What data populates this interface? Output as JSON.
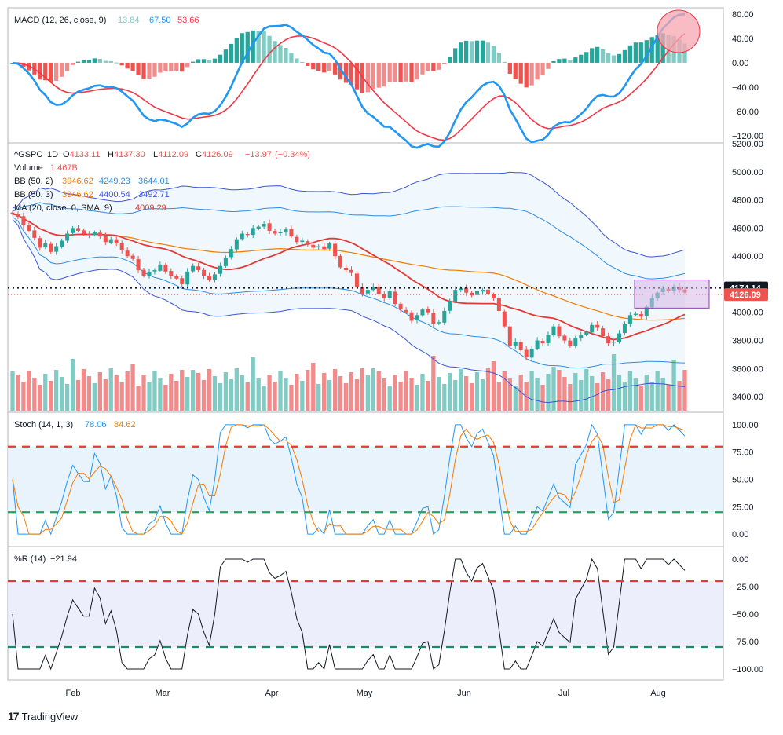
{
  "chart_data": {
    "type": "candlestick",
    "symbol": "^GSPC",
    "interval": "1D",
    "ohlc": {
      "open": "4133.11",
      "high": "4137.30",
      "low": "4112.09",
      "close": "4126.09",
      "change": "−13.97",
      "change_pct": "(−0.34%)"
    },
    "volume": "1.467B",
    "x_ticks": [
      "Feb",
      "Mar",
      "Apr",
      "May",
      "Jun",
      "Jul",
      "Aug"
    ],
    "price_panel": {
      "ylim": [
        3300,
        5200
      ],
      "y_ticks": [
        "5200.00",
        "5000.00",
        "4800.00",
        "4600.00",
        "4400.00",
        "4200.00",
        "4000.00",
        "3800.00",
        "3600.00",
        "3400.00"
      ],
      "closes": [
        4700,
        4680,
        4620,
        4580,
        4530,
        4460,
        4490,
        4430,
        4470,
        4510,
        4560,
        4600,
        4580,
        4560,
        4550,
        4570,
        4540,
        4500,
        4520,
        4490,
        4440,
        4400,
        4380,
        4300,
        4260,
        4290,
        4300,
        4340,
        4290,
        4260,
        4240,
        4200,
        4290,
        4330,
        4300,
        4260,
        4230,
        4270,
        4330,
        4390,
        4450,
        4520,
        4560,
        4550,
        4600,
        4610,
        4630,
        4580,
        4560,
        4570,
        4590,
        4540,
        4500,
        4510,
        4480,
        4460,
        4470,
        4450,
        4490,
        4400,
        4320,
        4300,
        4280,
        4180,
        4130,
        4160,
        4180,
        4130,
        4100,
        4150,
        4060,
        4020,
        4000,
        3940,
        3980,
        4020,
        4000,
        3920,
        3930,
        4010,
        4080,
        4160,
        4170,
        4140,
        4120,
        4150,
        4160,
        4130,
        4100,
        4010,
        3900,
        3760,
        3790,
        3730,
        3680,
        3740,
        3800,
        3780,
        3840,
        3900,
        3830,
        3800,
        3760,
        3820,
        3840,
        3860,
        3910,
        3890,
        3830,
        3780,
        3790,
        3850,
        3920,
        3980,
        3990,
        3970,
        4040,
        4100,
        4140,
        4170,
        4150,
        4180,
        4160,
        4140
      ],
      "last_price": {
        "label": "4126.09",
        "value": 4126.09
      },
      "prior_level": {
        "label": "4174.14",
        "value": 4174.14
      },
      "ma": {
        "label": "MA (20, close, 0, SMA, 9)",
        "value": "4009.29"
      },
      "bb_50_2": {
        "label": "BB (50, 2)",
        "basis": "3946.62",
        "upper": "4249.23",
        "lower": "3644.01"
      },
      "bb_50_3": {
        "label": "BB (50, 3)",
        "basis": "3946.62",
        "upper": "4400.54",
        "lower": "3492.71"
      },
      "volume_label": "Volume"
    },
    "macd_panel": {
      "label": "MACD (12, 26, close, 9)",
      "hist": "13.84",
      "macd": "67.50",
      "signal": "53.66",
      "ylim": [
        -130,
        90
      ],
      "y_ticks": [
        "80.00",
        "40.00",
        "0.00",
        "−40.00",
        "−80.00",
        "−120.00"
      ]
    },
    "stoch_panel": {
      "label": "Stoch (14, 1, 3)",
      "k": "78.06",
      "d": "84.62",
      "ylim": [
        -10,
        110
      ],
      "y_ticks": [
        "100.00",
        "75.00",
        "50.00",
        "25.00",
        "0.00"
      ],
      "upper_band": 80,
      "lower_band": 20
    },
    "wr_panel": {
      "label": "%R (14)",
      "value": "−21.94",
      "ylim": [
        -110,
        10
      ],
      "y_ticks": [
        "0.00",
        "−25.00",
        "−50.00",
        "−75.00",
        "−100.00"
      ],
      "upper_band": -20,
      "lower_band": -80
    }
  },
  "colors": {
    "up": "#26a69a",
    "down": "#ef5350",
    "vol_up": "#80cbc4",
    "vol_down": "#f28b8b",
    "macd": "#2196f3",
    "signal": "#f23645",
    "ma": "#e53935",
    "bb2": "#2e8de3",
    "bb3": "#3a56d6",
    "bb_basis": "#f57c00",
    "band_fill": "#e3f0fb",
    "k": "#2196f3",
    "d": "#f57c00",
    "upper_dash": "#e53935",
    "lower_dash": "#2e9e5e",
    "highlight_box": "#d7b8e8",
    "circle": "#f8a6b0"
  },
  "brand": {
    "logo": "17",
    "name": "TradingView"
  }
}
